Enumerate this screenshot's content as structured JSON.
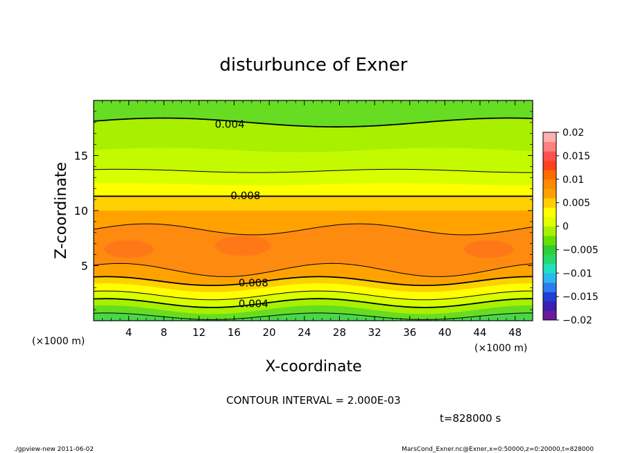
{
  "chart_data": {
    "type": "contour",
    "title": "disturbunce of Exner",
    "xlabel": "X-coordinate",
    "ylabel": "Z-coordinate",
    "x_unit_left": "(×1000 m)",
    "x_unit_right": "(×1000 m)",
    "xlim": [
      0,
      50
    ],
    "ylim": [
      0,
      20
    ],
    "x_ticks": [
      "4",
      "8",
      "12",
      "16",
      "20",
      "24",
      "28",
      "32",
      "36",
      "40",
      "44",
      "48"
    ],
    "x_tick_values": [
      4,
      8,
      12,
      16,
      20,
      24,
      28,
      32,
      36,
      40,
      44,
      48
    ],
    "y_ticks": [
      "5",
      "10",
      "15"
    ],
    "y_tick_values": [
      5,
      10,
      15
    ],
    "contour_interval_text": "CONTOUR INTERVAL = 2.000E-03",
    "time_text": "t=828000 s",
    "contour_labels": [
      {
        "text": "0.004",
        "x": 15.5,
        "y": 17.9
      },
      {
        "text": "0.008",
        "x": 17.3,
        "y": 11.4
      },
      {
        "text": "0.008",
        "x": 18.2,
        "y": 3.5
      },
      {
        "text": "0.004",
        "x": 18.2,
        "y": 1.6
      }
    ],
    "colorbar": {
      "ticks": [
        "0.02",
        "0.015",
        "0.01",
        "0.005",
        "0",
        "−0.005",
        "−0.01",
        "−0.015",
        "−0.02"
      ],
      "tick_values": [
        0.02,
        0.015,
        0.01,
        0.005,
        0,
        -0.005,
        -0.01,
        -0.015,
        -0.02
      ],
      "range": [
        -0.02,
        0.02
      ],
      "colors": [
        "#6a1b9a",
        "#3a1fb0",
        "#1f3fd6",
        "#2e7bf0",
        "#2ab8f2",
        "#20e0c0",
        "#26d86a",
        "#33cc33",
        "#66e000",
        "#a8f000",
        "#e0ff00",
        "#ffff00",
        "#ffd000",
        "#ffa000",
        "#ff8a00",
        "#ff6a00",
        "#ff4020",
        "#ff5050",
        "#ff8080",
        "#ffb0b0"
      ]
    },
    "field_colors": {
      "low": "#4ad64a",
      "green": "#66dd22",
      "lightgreen": "#a8f000",
      "yellowgreen": "#d8ff00",
      "yellow": "#ffff00",
      "yelloworange": "#ffd000",
      "orange": "#ffa200",
      "deeporange": "#ff8a10",
      "hot": "#ff7818"
    }
  },
  "footer": {
    "left": "./gpview-new   2011-06-02",
    "right": "MarsCond_Exner.nc@Exner,x=0:50000,z=0:20000,t=828000"
  }
}
